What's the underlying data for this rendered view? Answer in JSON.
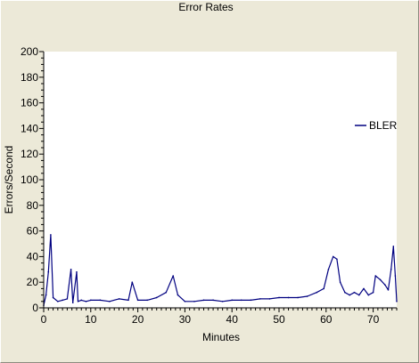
{
  "chart_data": {
    "type": "line",
    "title": "Error Rates",
    "xlabel": "Minutes",
    "ylabel": "Errors/Second",
    "xlim": [
      0,
      75
    ],
    "ylim": [
      0,
      200
    ],
    "x_ticks": [
      0,
      10,
      20,
      30,
      40,
      50,
      60,
      70
    ],
    "y_ticks": [
      0,
      20,
      40,
      60,
      80,
      100,
      120,
      140,
      160,
      180,
      200
    ],
    "grid": false,
    "legend_position": "right",
    "series": [
      {
        "name": "BLER",
        "color": "#000080",
        "x": [
          0,
          0.5,
          1.0,
          1.5,
          2.0,
          3,
          4,
          5,
          5.8,
          6.2,
          7,
          7.3,
          8,
          9,
          10,
          12,
          14,
          16,
          18,
          18.8,
          20,
          22,
          24,
          26,
          27.5,
          28.5,
          30,
          32,
          34,
          36,
          38,
          40,
          42,
          44,
          46,
          48,
          50,
          52,
          54,
          56,
          58,
          59.5,
          60.5,
          61.5,
          62.3,
          63,
          64,
          65,
          66,
          67,
          68,
          69,
          70,
          70.5,
          71.5,
          72.5,
          73.2,
          73.8,
          74.3,
          74.7,
          75
        ],
        "values": [
          2,
          10,
          28,
          57,
          8,
          5,
          6,
          7,
          30,
          4,
          28,
          5,
          6,
          5,
          6,
          6,
          5,
          7,
          6,
          20,
          6,
          6,
          8,
          12,
          25,
          10,
          5,
          5,
          6,
          6,
          5,
          6,
          6,
          6,
          7,
          7,
          8,
          8,
          8,
          9,
          12,
          15,
          30,
          40,
          38,
          20,
          12,
          10,
          12,
          10,
          15,
          10,
          12,
          25,
          22,
          18,
          14,
          30,
          48,
          25,
          5
        ]
      }
    ]
  }
}
